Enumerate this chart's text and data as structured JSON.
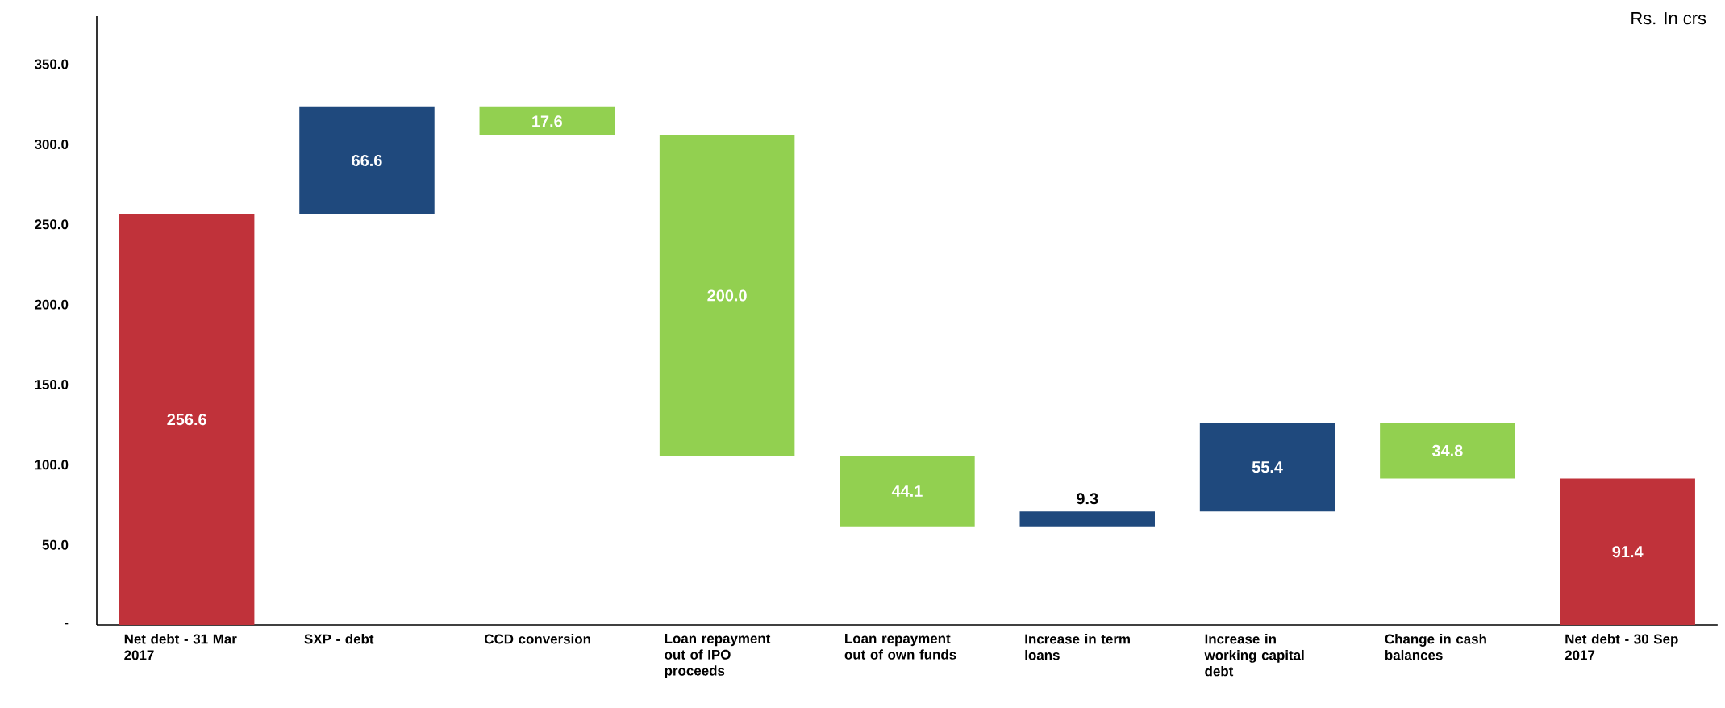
{
  "chart_data": {
    "type": "bar",
    "categories": [
      "Net debt - 31 Mar 2017",
      "SXP - debt",
      "CCD conversion",
      "Loan repayment out of IPO proceeds",
      "Loan repayment out of own funds",
      "Increase in term loans",
      "Increase in working capital debt",
      "Change in cash balances",
      "Net debt - 30 Sep 2017"
    ],
    "values": [
      256.6,
      66.6,
      17.6,
      200.0,
      44.1,
      9.3,
      55.4,
      34.8,
      91.4
    ],
    "base": [
      0,
      256.6,
      305.6,
      105.6,
      61.5,
      61.5,
      70.8,
      91.4,
      0
    ],
    "colors": [
      "#c0323a",
      "#1f497d",
      "#92d050",
      "#92d050",
      "#92d050",
      "#1f497d",
      "#1f497d",
      "#92d050",
      "#c0323a"
    ],
    "value_labels": [
      "256.6",
      "66.6",
      "17.6",
      "200.0",
      "44.1",
      "9.3",
      "55.4",
      "34.8",
      "91.4"
    ],
    "ylim": [
      0,
      380
    ],
    "yticks": [
      {
        "value": 0,
        "label": "-"
      },
      {
        "value": 50,
        "label": "50.0"
      },
      {
        "value": 100,
        "label": "100.0"
      },
      {
        "value": 150,
        "label": "150.0"
      },
      {
        "value": 200,
        "label": "200.0"
      },
      {
        "value": 250,
        "label": "250.0"
      },
      {
        "value": 300,
        "label": "300.0"
      },
      {
        "value": 350,
        "label": "350.0"
      }
    ],
    "grid": false,
    "annotations": [
      "Rs. In crs"
    ]
  }
}
